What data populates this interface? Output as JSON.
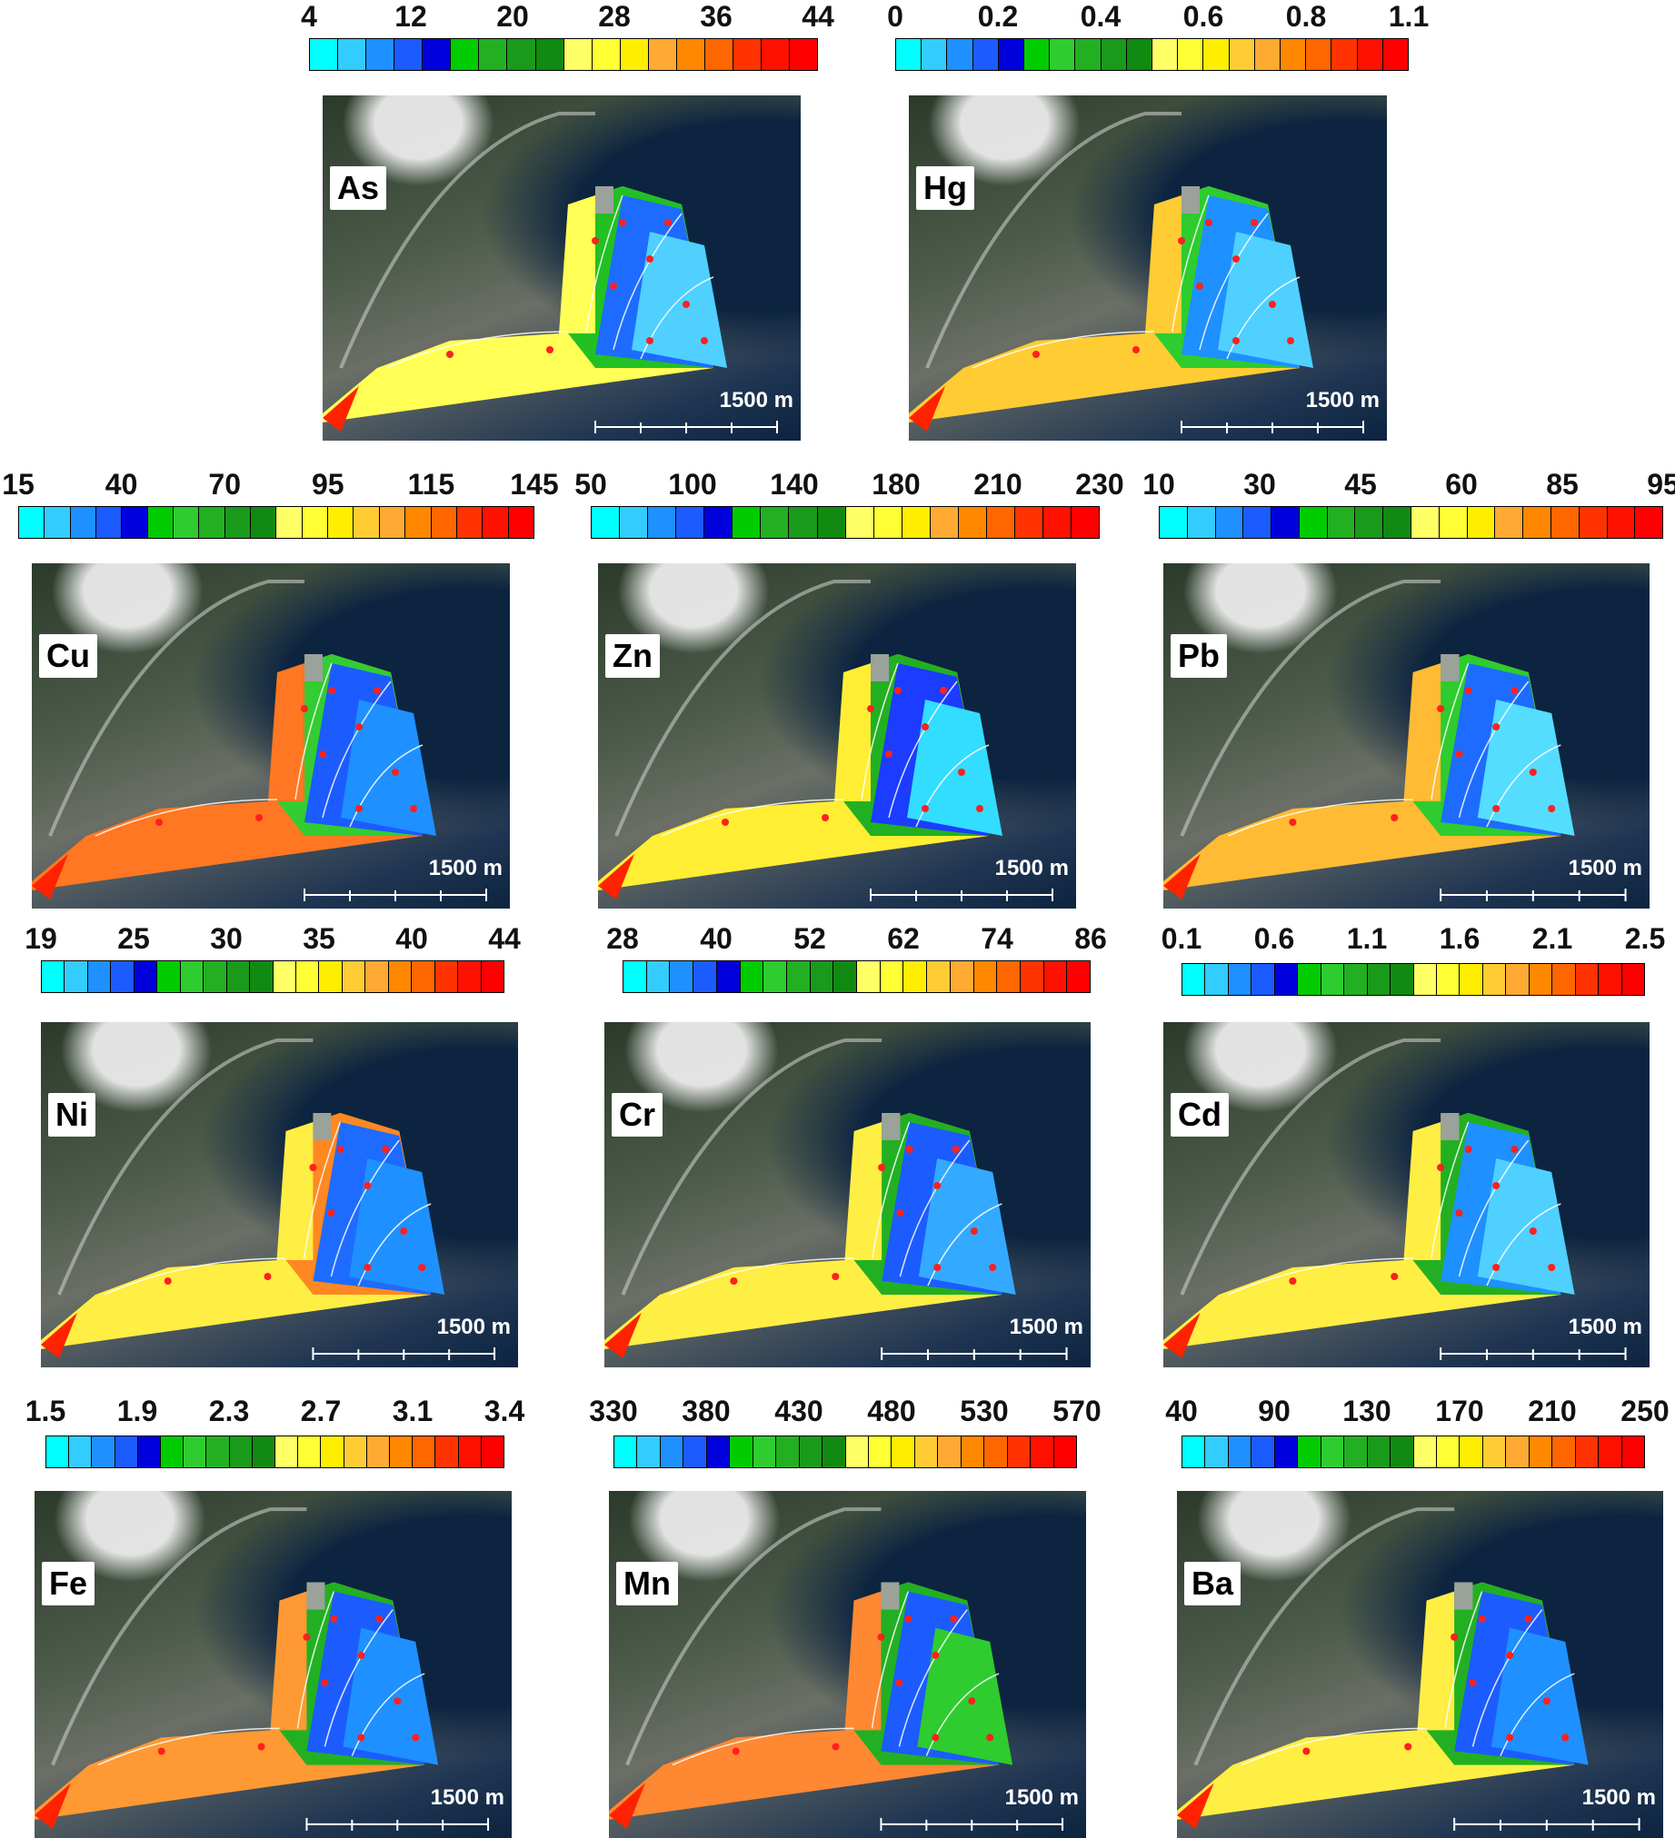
{
  "palette": [
    "#00ffff",
    "#33ccff",
    "#1e90ff",
    "#1c5cff",
    "#0000dd",
    "#00cc00",
    "#2ecc2e",
    "#22b022",
    "#1a9a1a",
    "#118a11",
    "#ffff66",
    "#ffff33",
    "#ffee00",
    "#ffcc33",
    "#ffaa33",
    "#ff8800",
    "#ff6600",
    "#ff3300",
    "#ff1100",
    "#ff0000",
    "#ff0000"
  ],
  "scale_label": "1500 m",
  "panels": [
    {
      "element": "As",
      "ticks": [
        "4",
        "12",
        "20",
        "28",
        "36",
        "44"
      ],
      "cells": 18
    },
    {
      "element": "Hg",
      "ticks": [
        "0",
        "0.2",
        "0.4",
        "0.6",
        "0.8",
        "1.1"
      ],
      "cells": 20
    },
    {
      "element": "Cu",
      "ticks": [
        "15",
        "40",
        "70",
        "95",
        "115",
        "145"
      ],
      "cells": 20
    },
    {
      "element": "Zn",
      "ticks": [
        "50",
        "100",
        "140",
        "180",
        "210",
        "230"
      ],
      "cells": 18
    },
    {
      "element": "Pb",
      "ticks": [
        "10",
        "30",
        "45",
        "60",
        "85",
        "95"
      ],
      "cells": 18
    },
    {
      "element": "Ni",
      "ticks": [
        "19",
        "25",
        "30",
        "35",
        "40",
        "44"
      ],
      "cells": 20
    },
    {
      "element": "Cr",
      "ticks": [
        "28",
        "40",
        "52",
        "62",
        "74",
        "86"
      ],
      "cells": 20
    },
    {
      "element": "Cd",
      "ticks": [
        "0.1",
        "0.6",
        "1.1",
        "1.6",
        "2.1",
        "2.5"
      ],
      "cells": 20
    },
    {
      "element": "Fe",
      "ticks": [
        "1.5",
        "1.9",
        "2.3",
        "2.7",
        "3.1",
        "3.4"
      ],
      "cells": 20
    },
    {
      "element": "Mn",
      "ticks": [
        "330",
        "380",
        "430",
        "480",
        "530",
        "570"
      ],
      "cells": 20
    },
    {
      "element": "Ba",
      "ticks": [
        "40",
        "90",
        "130",
        "170",
        "210",
        "250"
      ],
      "cells": 20
    }
  ]
}
